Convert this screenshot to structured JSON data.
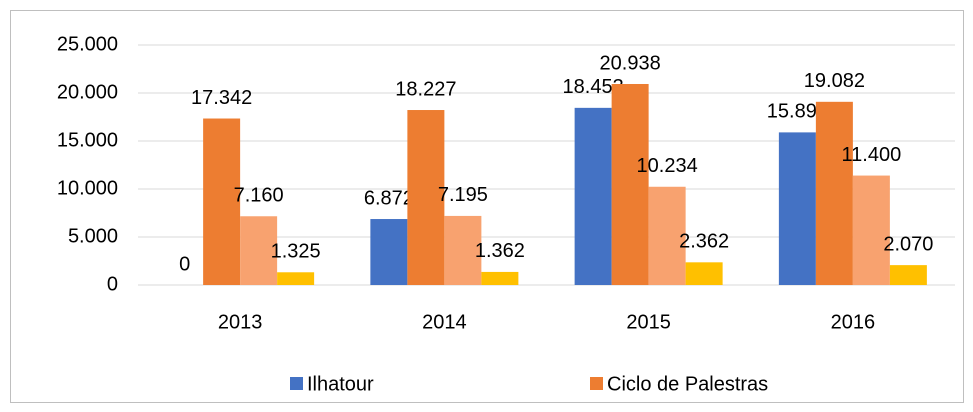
{
  "chart_data": {
    "type": "bar",
    "categories": [
      "2013",
      "2014",
      "2015",
      "2016"
    ],
    "series": [
      {
        "name": "Ilhatour",
        "color": "#4472c4",
        "values": [
          0,
          6872,
          18453,
          15897
        ],
        "value_labels": [
          "0",
          "6.872",
          "18.453",
          "15.897"
        ]
      },
      {
        "name": "Ciclo de Palestras",
        "color": "#ed7d31",
        "values": [
          17342,
          18227,
          20938,
          19082
        ],
        "value_labels": [
          "17.342",
          "18.227",
          "20.938",
          "19.082"
        ]
      },
      {
        "color": "#f8a26f",
        "values": [
          7160,
          7195,
          10234,
          11400
        ],
        "value_labels": [
          "7.160",
          "7.195",
          "10.234",
          "11.400"
        ]
      },
      {
        "color": "#ffc000",
        "values": [
          1325,
          1362,
          2362,
          2070
        ],
        "value_labels": [
          "1.325",
          "1.362",
          "2.362",
          "2.070"
        ]
      }
    ],
    "ylim": [
      0,
      25000
    ],
    "yticks": [
      {
        "value": 0,
        "label": "0"
      },
      {
        "value": 5000,
        "label": "5.000"
      },
      {
        "value": 10000,
        "label": "10.000"
      },
      {
        "value": 15000,
        "label": "15.000"
      },
      {
        "value": 20000,
        "label": "20.000"
      },
      {
        "value": 25000,
        "label": "25.000"
      }
    ],
    "grid": true,
    "legend": "bottom"
  }
}
